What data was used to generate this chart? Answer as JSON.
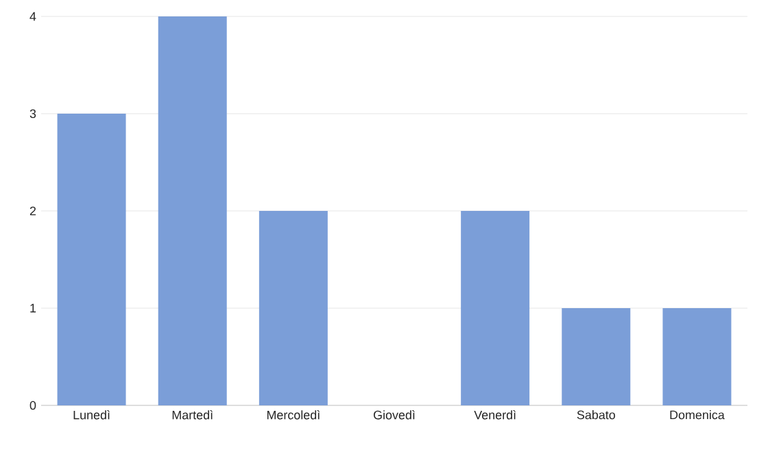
{
  "chart_data": {
    "type": "bar",
    "categories": [
      "Lunedì",
      "Martedì",
      "Mercoledì",
      "Giovedì",
      "Venerdì",
      "Sabato",
      "Domenica"
    ],
    "values": [
      3,
      4,
      2,
      0,
      2,
      1,
      1
    ],
    "color": "#7b9ed8",
    "ylim": [
      0,
      4
    ],
    "yticks": [
      0,
      1,
      2,
      3,
      4
    ],
    "grid": "y"
  }
}
